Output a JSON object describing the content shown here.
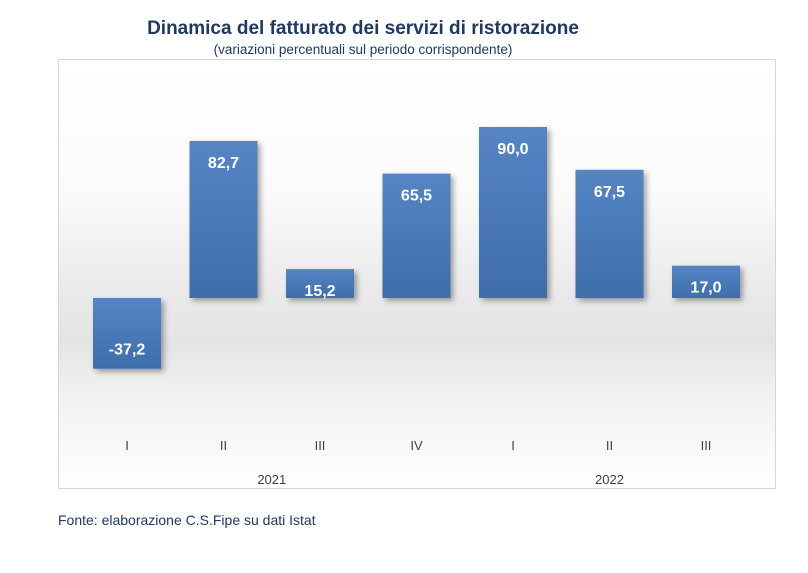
{
  "chart_data": {
    "type": "bar",
    "title": "Dinamica del fatturato dei servizi di ristorazione",
    "subtitle": "(variazioni percentuali sul periodo corrispondente)",
    "categories": [
      "I",
      "II",
      "III",
      "IV",
      "I",
      "II",
      "III"
    ],
    "groups": [
      {
        "label": "2021",
        "categories": [
          "I",
          "II",
          "III",
          "IV"
        ]
      },
      {
        "label": "2022",
        "categories": [
          "I",
          "II",
          "III"
        ]
      }
    ],
    "values": [
      -37.2,
      82.7,
      15.2,
      65.5,
      90.0,
      67.5,
      17.0
    ],
    "data_labels": [
      "-37,2",
      "82,7",
      "15,2",
      "65,5",
      "90,0",
      "67,5",
      "17,0"
    ],
    "xlabel": "",
    "ylabel": "",
    "ylim": [
      -37.2,
      90.0
    ],
    "grid": false,
    "legend": "none",
    "bar_color": "#4a78b5"
  },
  "source": "Fonte: elaborazione C.S.Fipe su dati Istat"
}
